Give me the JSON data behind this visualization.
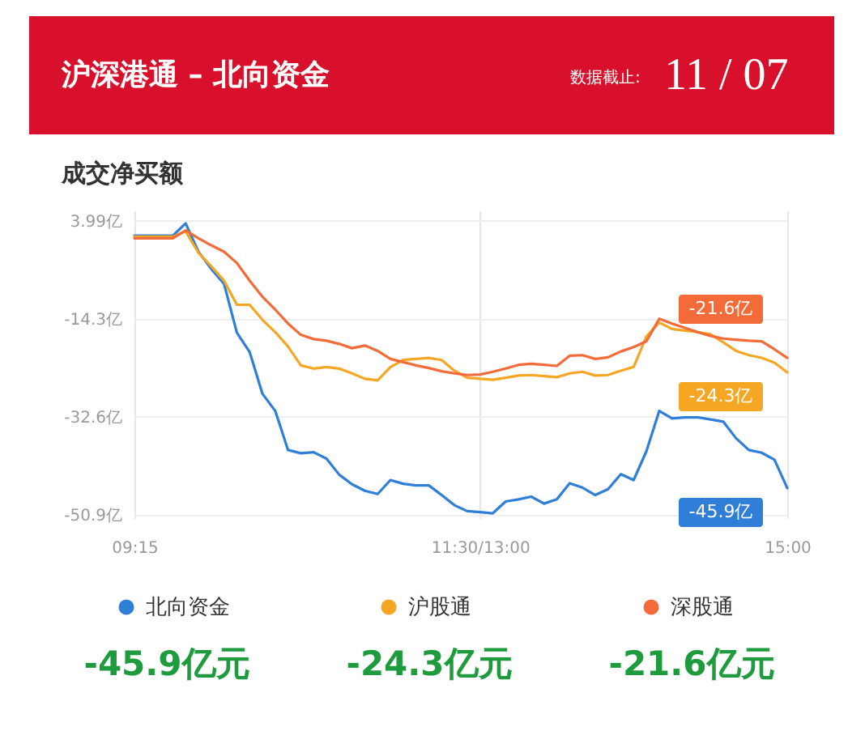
{
  "chart_data": {
    "type": "line",
    "title": "沪深港通 – 北向资金",
    "subtitle": "成交净买额",
    "categories": [
      "09:15",
      null,
      null,
      null,
      null,
      null,
      null,
      null,
      null,
      null,
      null,
      null,
      null,
      null,
      null,
      null,
      null,
      null,
      null,
      null,
      null,
      null,
      null,
      null,
      null,
      null,
      null,
      "11:30/13:00",
      null,
      null,
      null,
      null,
      null,
      null,
      null,
      null,
      null,
      null,
      null,
      null,
      null,
      null,
      null,
      null,
      null,
      null,
      null,
      null,
      null,
      null,
      null,
      "15:00"
    ],
    "series": [
      {
        "name": "北向资金",
        "color": "#2f7fd8",
        "values": [
          1.2,
          1.2,
          1.2,
          1.2,
          3.5,
          -1.8,
          -5.0,
          -7.8,
          -16.9,
          -20.5,
          -28.3,
          -31.5,
          -38.8,
          -39.4,
          -39.2,
          -40.4,
          -43.4,
          -45.2,
          -46.4,
          -47.0,
          -44.4,
          -45.1,
          -45.4,
          -45.4,
          -47.2,
          -49.1,
          -50.2,
          -50.4,
          -50.6,
          -48.4,
          -48.0,
          -47.5,
          -48.8,
          -48.0,
          -45.0,
          -45.8,
          -47.2,
          -46.1,
          -43.3,
          -44.4,
          -39.0,
          -31.5,
          -32.9,
          -32.7,
          -32.7,
          -33.1,
          -33.5,
          -36.6,
          -38.8,
          -39.3,
          -40.6,
          -45.9
        ]
      },
      {
        "name": "沪股通",
        "color": "#f5a623",
        "values": [
          1.0,
          1.0,
          1.0,
          1.0,
          2.0,
          -2.0,
          -4.5,
          -7.2,
          -11.7,
          -11.7,
          -14.5,
          -16.8,
          -19.5,
          -23.0,
          -23.6,
          -23.3,
          -23.6,
          -24.5,
          -25.5,
          -25.8,
          -23.3,
          -22.0,
          -21.8,
          -21.6,
          -22.0,
          -24.0,
          -25.3,
          -25.5,
          -25.7,
          -25.3,
          -24.9,
          -24.8,
          -25.0,
          -25.2,
          -24.5,
          -24.2,
          -24.9,
          -24.8,
          -24.0,
          -23.3,
          -17.6,
          -15.0,
          -16.2,
          -16.5,
          -16.8,
          -17.2,
          -18.7,
          -20.3,
          -21.1,
          -21.6,
          -22.5,
          -24.3
        ]
      },
      {
        "name": "深股通",
        "color": "#f26b38",
        "values": [
          0.7,
          0.7,
          0.7,
          0.7,
          2.2,
          0.7,
          -0.6,
          -1.8,
          -3.9,
          -7.2,
          -10.2,
          -12.6,
          -15.2,
          -17.3,
          -18.1,
          -18.4,
          -19.0,
          -19.8,
          -19.3,
          -20.3,
          -21.8,
          -22.4,
          -23.0,
          -23.5,
          -24.1,
          -24.5,
          -24.8,
          -24.7,
          -24.2,
          -23.6,
          -22.9,
          -22.7,
          -22.9,
          -23.1,
          -21.2,
          -21.1,
          -21.8,
          -21.5,
          -20.4,
          -19.6,
          -18.5,
          -14.3,
          -15.2,
          -16.0,
          -16.8,
          -17.5,
          -18.0,
          -18.2,
          -18.4,
          -18.5,
          -20.0,
          -21.6
        ]
      }
    ],
    "ylim": [
      -51.5,
      5.9
    ],
    "yticks": [
      {
        "value": 3.99,
        "label": "3.99亿"
      },
      {
        "value": -14.3,
        "label": "-14.3亿"
      },
      {
        "value": -32.6,
        "label": "-32.6亿"
      },
      {
        "value": -50.9,
        "label": "-50.9亿"
      }
    ],
    "grid": true,
    "legend": "bottom",
    "annotations": [
      "数据截止:",
      "11 / 07",
      {
        "text": "-21.6亿",
        "x": "15:00",
        "y": -21.6
      },
      {
        "text": "-24.3亿",
        "x": "15:00",
        "y": -24.3
      },
      {
        "text": "-45.9亿",
        "x": "15:00",
        "y": -45.9
      },
      "-45.9亿元",
      "-24.3亿元",
      "-21.6亿元"
    ]
  }
}
